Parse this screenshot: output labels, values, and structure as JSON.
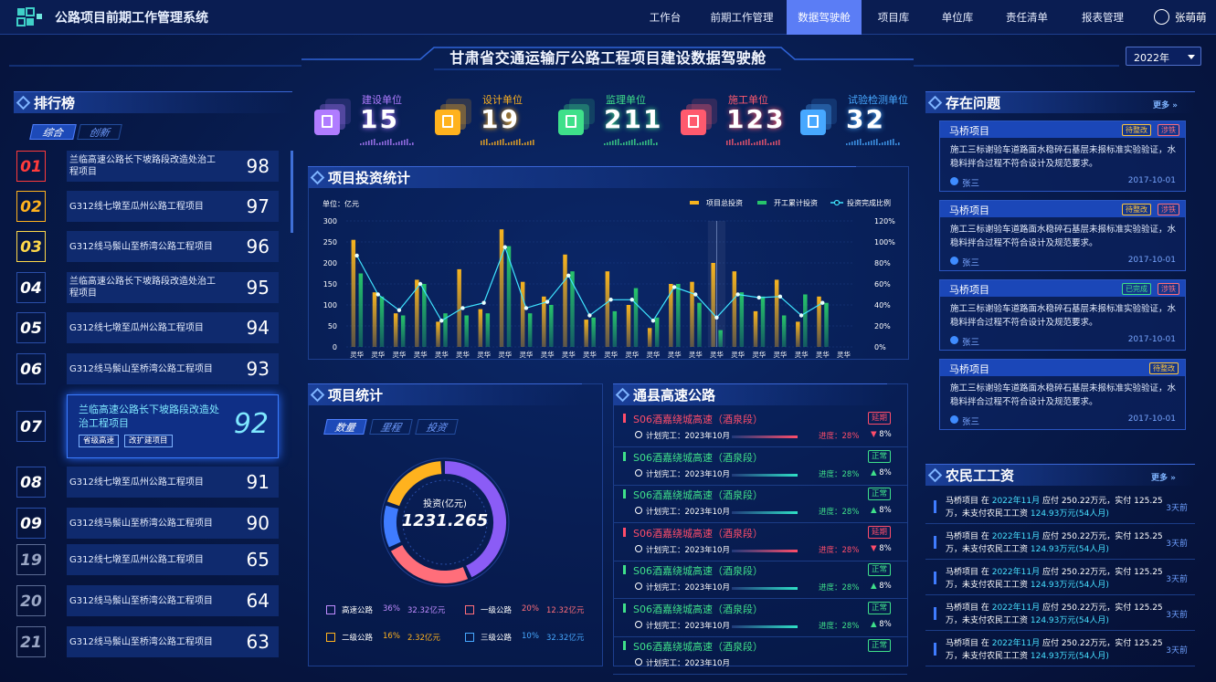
{
  "app": {
    "title": "公路项目前期工作管理系统",
    "user": "张萌萌"
  },
  "nav": [
    {
      "label": "工作台"
    },
    {
      "label": "前期工作管理"
    },
    {
      "label": "数据驾驶舱"
    },
    {
      "label": "项目库"
    },
    {
      "label": "单位库"
    },
    {
      "label": "责任清单"
    },
    {
      "label": "报表管理"
    }
  ],
  "page": {
    "title": "甘肃省交通运输厅公路工程项目建设数据驾驶舱",
    "year": "2022年"
  },
  "ranking": {
    "title": "排行榜",
    "tabs": [
      "综合",
      "创新"
    ],
    "items": [
      {
        "rank": "01",
        "name": "兰临高速公路长下坡路段改造处治工程项目",
        "score": "98"
      },
      {
        "rank": "02",
        "name": "G312线七墩至瓜州公路工程项目",
        "score": "97"
      },
      {
        "rank": "03",
        "name": "G312线马鬃山至桥湾公路工程项目",
        "score": "96"
      },
      {
        "rank": "04",
        "name": "兰临高速公路长下坡路段改造处治工程项目",
        "score": "95"
      },
      {
        "rank": "05",
        "name": "G312线七墩至瓜州公路工程项目",
        "score": "94"
      },
      {
        "rank": "06",
        "name": "G312线马鬃山至桥湾公路工程项目",
        "score": "93"
      },
      {
        "rank": "07",
        "name": "兰临高速公路长下坡路段改造处治工程项目",
        "score": "92",
        "tags": [
          "省级高速",
          "改扩建项目"
        ]
      },
      {
        "rank": "08",
        "name": "G312线七墩至瓜州公路工程项目",
        "score": "91"
      },
      {
        "rank": "09",
        "name": "G312线马鬃山至桥湾公路工程项目",
        "score": "90"
      },
      {
        "rank": "19",
        "name": "G312线七墩至瓜州公路工程项目",
        "score": "65"
      },
      {
        "rank": "20",
        "name": "G312线马鬃山至桥湾公路工程项目",
        "score": "64"
      },
      {
        "rank": "21",
        "name": "G312线马鬃山至桥湾公路工程项目",
        "score": "63"
      }
    ]
  },
  "stats": [
    {
      "label": "建设单位",
      "value": "15",
      "color": "#b07cff"
    },
    {
      "label": "设计单位",
      "value": "19",
      "color": "#ffb21e"
    },
    {
      "label": "监理单位",
      "value": "211",
      "color": "#3fe08a"
    },
    {
      "label": "施工单位",
      "value": "123",
      "color": "#ff5a6e"
    },
    {
      "label": "试验检测单位",
      "value": "32",
      "color": "#47a8ff"
    }
  ],
  "investment": {
    "title": "项目投资统计"
  },
  "chart_data": {
    "type": "bar",
    "ylabel": "单位：亿元",
    "ylim": [
      0,
      300
    ],
    "y2lim": [
      0,
      120
    ],
    "yticks": [
      "300",
      "250",
      "200",
      "150",
      "100",
      "50",
      "0"
    ],
    "y2ticks": [
      "120%",
      "100%",
      "80%",
      "60%",
      "40%",
      "20%",
      "0%"
    ],
    "categories": [
      "灵华",
      "灵华",
      "灵华",
      "灵华",
      "灵华",
      "灵华",
      "灵华",
      "灵华",
      "灵华",
      "灵华",
      "灵华",
      "灵华",
      "灵华",
      "灵华",
      "灵华",
      "灵华",
      "灵华",
      "灵华",
      "灵华",
      "灵华",
      "灵华",
      "灵华",
      "灵华",
      "灵华"
    ],
    "series": [
      {
        "name": "项目总投资",
        "type": "bar",
        "color": "#f7b41f",
        "values": [
          255,
          130,
          80,
          160,
          60,
          185,
          90,
          280,
          155,
          120,
          220,
          65,
          180,
          100,
          45,
          150,
          155,
          200,
          180,
          85,
          160,
          60,
          120,
          null
        ]
      },
      {
        "name": "开工累计投资",
        "type": "bar",
        "color": "#27c46b",
        "values": [
          175,
          120,
          75,
          150,
          80,
          75,
          80,
          240,
          80,
          100,
          180,
          70,
          85,
          140,
          70,
          150,
          105,
          40,
          130,
          120,
          75,
          125,
          105,
          null
        ]
      },
      {
        "name": "投资完成比例",
        "type": "line",
        "color": "#3fe4ff",
        "values": [
          87,
          50,
          35,
          60,
          25,
          37,
          42,
          95,
          37,
          43,
          68,
          30,
          45,
          45,
          25,
          57,
          50,
          28,
          50,
          47,
          48,
          30,
          42,
          null
        ]
      }
    ]
  },
  "project_stats": {
    "title": "项目统计",
    "tabs": [
      "数量",
      "里程",
      "投资"
    ],
    "center_label": "投资(亿元)",
    "center_value": "1231.265",
    "donut": [
      {
        "value": 36,
        "color": "#8b5cf6"
      },
      {
        "value": 20,
        "color": "#ff6e7a"
      },
      {
        "value": 10,
        "color": "#3f7cff"
      },
      {
        "value": 16,
        "color": "#ffb21e"
      }
    ],
    "legend": [
      {
        "name": "高速公路",
        "pct": "36%",
        "amount": "32.32亿元",
        "color": "#c08cff"
      },
      {
        "name": "一级公路",
        "pct": "20%",
        "amount": "12.32亿元",
        "color": "#ff6e7a"
      },
      {
        "name": "二级公路",
        "pct": "16%",
        "amount": "2.32亿元",
        "color": "#ffb21e"
      },
      {
        "name": "三级公路",
        "pct": "10%",
        "amount": "32.32亿元",
        "color": "#47a8ff"
      }
    ]
  },
  "roads": {
    "title": "通县高速公路",
    "items": [
      {
        "name": "S06酒嘉绕城高速（酒泉段）",
        "plan": "计划完工：2023年10月",
        "progress": "进度：28%",
        "delta": "8%",
        "status": "延期",
        "state": "bad"
      },
      {
        "name": "S06酒嘉绕城高速（酒泉段）",
        "plan": "计划完工：2023年10月",
        "progress": "进度：28%",
        "delta": "8%",
        "status": "正常",
        "state": "ok"
      },
      {
        "name": "S06酒嘉绕城高速（酒泉段）",
        "plan": "计划完工：2023年10月",
        "progress": "进度：28%",
        "delta": "8%",
        "status": "正常",
        "state": "ok"
      },
      {
        "name": "S06酒嘉绕城高速（酒泉段）",
        "plan": "计划完工：2023年10月",
        "progress": "进度：28%",
        "delta": "8%",
        "status": "延期",
        "state": "bad"
      },
      {
        "name": "S06酒嘉绕城高速（酒泉段）",
        "plan": "计划完工：2023年10月",
        "progress": "进度：28%",
        "delta": "8%",
        "status": "正常",
        "state": "ok"
      },
      {
        "name": "S06酒嘉绕城高速（酒泉段）",
        "plan": "计划完工：2023年10月",
        "progress": "进度：28%",
        "delta": "8%",
        "status": "正常",
        "state": "ok"
      },
      {
        "name": "S06酒嘉绕城高速（酒泉段）",
        "plan": "计划完工：2023年10月",
        "progress": "",
        "delta": "",
        "status": "正常",
        "state": "ok"
      }
    ]
  },
  "issues": {
    "title": "存在问题",
    "more": "更多",
    "items": [
      {
        "project": "马桥项目",
        "tags": [
          "待整改",
          "涉铁"
        ],
        "desc": "施工三标谢验车道路面水稳碎石基层未报标准实验验证，水稳料拌合过程不符合设计及规范要求。",
        "user": "张三",
        "date": "2017-10-01"
      },
      {
        "project": "马桥项目",
        "tags": [
          "待整改",
          "涉铁"
        ],
        "desc": "施工三标谢验车道路面水稳碎石基层未报标准实验验证，水稳料拌合过程不符合设计及规范要求。",
        "user": "张三",
        "date": "2017-10-01"
      },
      {
        "project": "马桥项目",
        "tags": [
          "已完成",
          "涉铁"
        ],
        "desc": "施工三标谢验车道路面水稳碎石基层未报标准实验验证，水稳料拌合过程不符合设计及规范要求。",
        "user": "张三",
        "date": "2017-10-01"
      },
      {
        "project": "马桥项目",
        "tags": [
          "待整改"
        ],
        "desc": "施工三标谢验车道路面水稳碎石基层未报标准实验验证，水稳料拌合过程不符合设计及规范要求。",
        "user": "张三",
        "date": "2017-10-01"
      }
    ]
  },
  "wages": {
    "title": "农民工工资",
    "more": "更多",
    "items": [
      {
        "a": "马桥项目 在 ",
        "month": "2022年11月",
        "b": " 应付 250.22万元，实付 125.25万，未支付农民工工资 ",
        "unpaid": "124.93万元(54人月)",
        "time": "3天前"
      },
      {
        "a": "马桥项目 在 ",
        "month": "2022年11月",
        "b": " 应付 250.22万元，实付 125.25万，未支付农民工工资 ",
        "unpaid": "124.93万元(54人月)",
        "time": "3天前"
      },
      {
        "a": "马桥项目 在 ",
        "month": "2022年11月",
        "b": " 应付 250.22万元，实付 125.25万，未支付农民工工资 ",
        "unpaid": "124.93万元(54人月)",
        "time": "3天前"
      },
      {
        "a": "马桥项目 在 ",
        "month": "2022年11月",
        "b": " 应付 250.22万元，实付 125.25万，未支付农民工工资 ",
        "unpaid": "124.93万元(54人月)",
        "time": "3天前"
      },
      {
        "a": "马桥项目 在 ",
        "month": "2022年11月",
        "b": " 应付 250.22万元，实付 125.25万，未支付农民工工资 ",
        "unpaid": "124.93万元(54人月)",
        "time": "3天前"
      }
    ]
  }
}
